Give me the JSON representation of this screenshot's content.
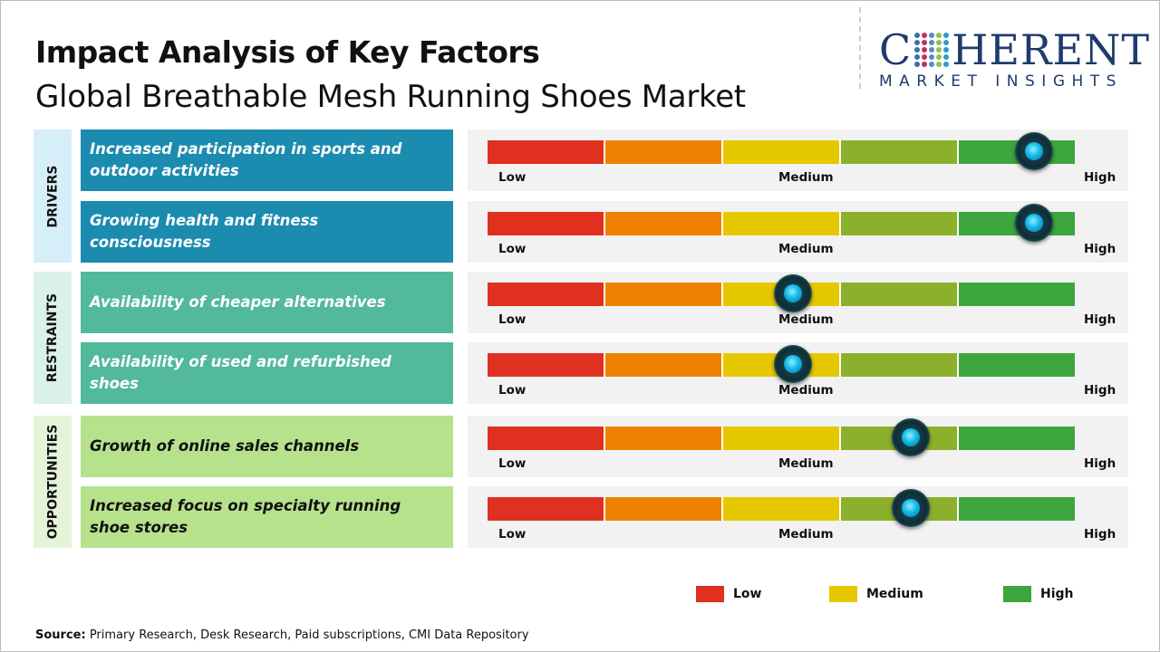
{
  "header": {
    "title": "Impact Analysis of Key Factors",
    "subtitle": "Global Breathable Mesh Running Shoes Market"
  },
  "logo": {
    "name_start": "C",
    "name_end": "HERENT",
    "tagline": "MARKET INSIGHTS"
  },
  "colors": {
    "low": "#e03020",
    "low_mid": "#ee8200",
    "medium": "#e6c800",
    "mid_high": "#8db02c",
    "high": "#3ea63e"
  },
  "scale_labels": {
    "low": "Low",
    "medium": "Medium",
    "high": "High"
  },
  "chart_data": {
    "type": "table",
    "title": "Impact Analysis of Key Factors",
    "scale": [
      "Low",
      "Medium",
      "High"
    ],
    "groups": [
      {
        "name": "DRIVERS",
        "factors": [
          {
            "label": "Increased participation in sports and outdoor activities",
            "impact": 0.93
          },
          {
            "label": "Growing health and fitness consciousness",
            "impact": 0.93
          }
        ]
      },
      {
        "name": "RESTRAINTS",
        "factors": [
          {
            "label": "Availability of cheaper alternatives",
            "impact": 0.52
          },
          {
            "label": "Availability of used and refurbished shoes",
            "impact": 0.52
          }
        ]
      },
      {
        "name": "OPPORTUNITIES",
        "factors": [
          {
            "label": "Growth of online sales channels",
            "impact": 0.72
          },
          {
            "label": "Increased focus on specialty running shoe stores",
            "impact": 0.72
          }
        ]
      }
    ]
  },
  "legend": [
    {
      "label": "Low",
      "color": "#e03020"
    },
    {
      "label": "Medium",
      "color": "#e6c800"
    },
    {
      "label": "High",
      "color": "#3ea63e"
    }
  ],
  "source": {
    "label": "Source:",
    "text": " Primary Research, Desk Research, Paid subscriptions, CMI Data Repository"
  }
}
